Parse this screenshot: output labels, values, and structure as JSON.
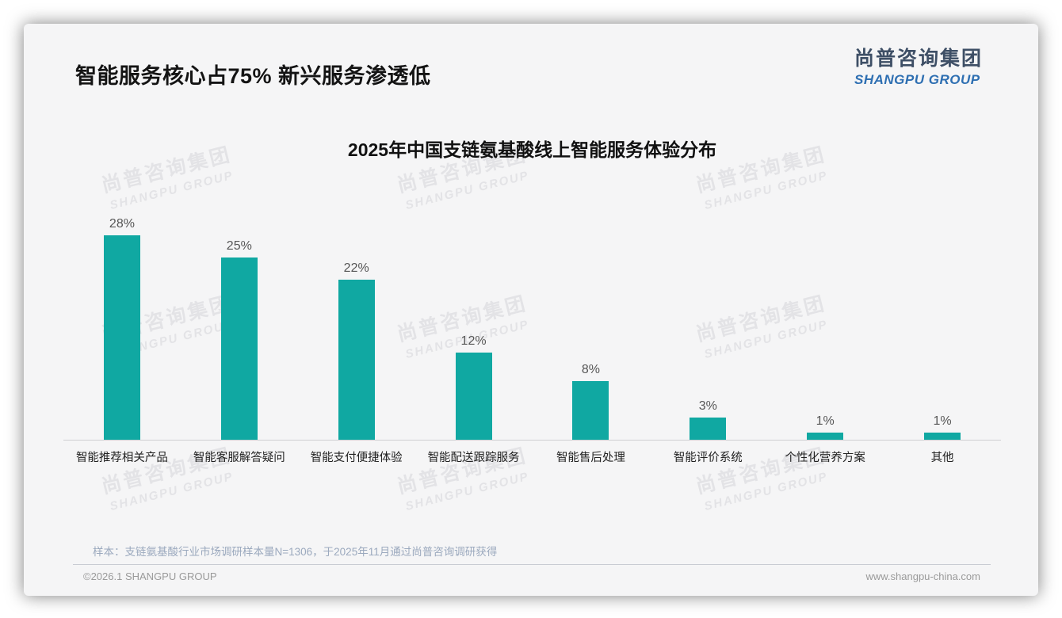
{
  "page": {
    "title": "智能服务核心占75% 新兴服务渗透低",
    "logo": {
      "cn": "尚普咨询集团",
      "en": "SHANGPU GROUP"
    },
    "watermark": {
      "cn": "尚普咨询集团",
      "en": "SHANGPU GROUP"
    },
    "footer": {
      "sample_note": "样本：支链氨基酸行业市场调研样本量N=1306，于2025年11月通过尚普咨询调研获得",
      "copyright": "©2026.1 SHANGPU GROUP",
      "website": "www.shangpu-china.com"
    }
  },
  "chart_data": {
    "type": "bar",
    "title": "2025年中国支链氨基酸线上智能服务体验分布",
    "categories": [
      "智能推荐相关产品",
      "智能客服解答疑问",
      "智能支付便捷体验",
      "智能配送跟踪服务",
      "智能售后处理",
      "智能评价系统",
      "个性化营养方案",
      "其他"
    ],
    "values": [
      28,
      25,
      22,
      12,
      8,
      3,
      1,
      1
    ],
    "value_labels": [
      "28%",
      "25%",
      "22%",
      "12%",
      "8%",
      "3%",
      "1%",
      "1%"
    ],
    "unit": "%",
    "ylim": [
      0,
      30
    ],
    "grid": false,
    "legend": "none",
    "bar_color": "#10a8a2",
    "axis_line_color": "#cfcfd2"
  },
  "colors": {
    "card_background": "#f5f5f6",
    "accent_teal": "#10a8a2",
    "logo_blue": "#2e6fb2",
    "logo_navy": "#3e4f66",
    "note_blue_gray": "#9ba9be"
  }
}
